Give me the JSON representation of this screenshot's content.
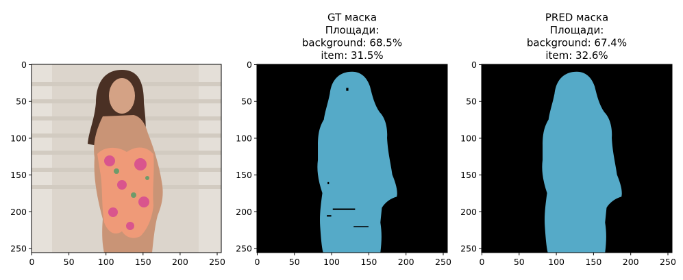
{
  "colors": {
    "background": "#000000",
    "item": "#55aac8",
    "photo_wall": "#dcd5cc",
    "swimsuit": "#ef9a78",
    "skin": "#c99476",
    "hair": "#4a3024"
  },
  "axes": {
    "x_range": [
      0,
      256
    ],
    "y_range": [
      0,
      256
    ],
    "x_ticks": [
      "0",
      "50",
      "100",
      "150",
      "200",
      "250"
    ],
    "y_ticks": [
      "0",
      "50",
      "100",
      "150",
      "200",
      "250"
    ]
  },
  "panels": [
    {
      "id": "image",
      "title_lines": []
    },
    {
      "id": "gt",
      "title_lines": [
        "GT маска",
        "Площади:",
        "background: 68.5%",
        "item: 31.5%"
      ]
    },
    {
      "id": "pred",
      "title_lines": [
        "PRED маска",
        "Площади:",
        "background: 67.4%",
        "item: 32.6%"
      ]
    }
  ],
  "areas": {
    "gt": {
      "background_pct": 68.5,
      "item_pct": 31.5
    },
    "pred": {
      "background_pct": 67.4,
      "item_pct": 32.6
    }
  }
}
